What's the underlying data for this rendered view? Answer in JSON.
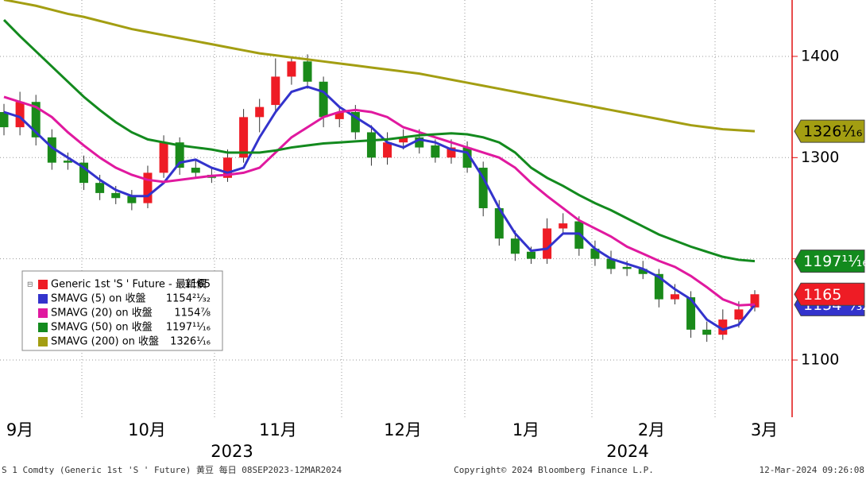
{
  "chart_data": {
    "type": "candlestick",
    "open": [
      1345,
      1330,
      1355,
      1320,
      1297,
      1295,
      1275,
      1265,
      1262,
      1255,
      1285,
      1315,
      1290,
      1283,
      1280,
      1300,
      1340,
      1352,
      1380,
      1395,
      1375,
      1338,
      1345,
      1325,
      1300,
      1315,
      1320,
      1312,
      1300,
      1310,
      1290,
      1250,
      1220,
      1207,
      1200,
      1230,
      1237,
      1210,
      1200,
      1192,
      1190,
      1185,
      1160,
      1162,
      1130,
      1125,
      1140,
      1152
    ],
    "high": [
      1353,
      1365,
      1362,
      1328,
      1305,
      1302,
      1283,
      1272,
      1268,
      1292,
      1322,
      1320,
      1297,
      1290,
      1308,
      1348,
      1358,
      1398,
      1400,
      1402,
      1380,
      1350,
      1352,
      1332,
      1325,
      1328,
      1328,
      1318,
      1318,
      1316,
      1296,
      1258,
      1228,
      1212,
      1240,
      1245,
      1242,
      1218,
      1208,
      1198,
      1198,
      1190,
      1175,
      1168,
      1138,
      1150,
      1158,
      1169
    ],
    "low": [
      1322,
      1322,
      1312,
      1288,
      1288,
      1268,
      1258,
      1254,
      1248,
      1250,
      1280,
      1283,
      1280,
      1275,
      1276,
      1295,
      1325,
      1345,
      1372,
      1368,
      1330,
      1330,
      1318,
      1292,
      1293,
      1308,
      1304,
      1295,
      1294,
      1285,
      1242,
      1213,
      1198,
      1195,
      1195,
      1224,
      1203,
      1193,
      1185,
      1183,
      1180,
      1152,
      1155,
      1122,
      1118,
      1120,
      1132,
      1148
    ],
    "close": [
      1330,
      1355,
      1320,
      1295,
      1295,
      1275,
      1265,
      1260,
      1255,
      1285,
      1315,
      1290,
      1285,
      1280,
      1300,
      1340,
      1350,
      1380,
      1395,
      1375,
      1340,
      1345,
      1325,
      1300,
      1315,
      1320,
      1310,
      1300,
      1310,
      1290,
      1250,
      1220,
      1205,
      1200,
      1230,
      1235,
      1210,
      1200,
      1190,
      1190,
      1185,
      1160,
      1165,
      1130,
      1125,
      1140,
      1150,
      1165
    ],
    "name": "Generic 1st 'S ' Future - 最新價",
    "up_color": "#ee1c25",
    "down_color": "#1a8a1a",
    "series": [
      {
        "name": "SMAVG (5)  on 收盤",
        "color": "#3333cc",
        "value_label": "1154²¹⁄₃₂",
        "values": [
          1345,
          1340,
          1325,
          1310,
          1300,
          1290,
          1278,
          1268,
          1262,
          1262,
          1275,
          1295,
          1298,
          1290,
          1285,
          1290,
          1320,
          1345,
          1365,
          1370,
          1365,
          1350,
          1340,
          1330,
          1315,
          1310,
          1318,
          1315,
          1308,
          1305,
          1280,
          1250,
          1225,
          1208,
          1210,
          1225,
          1225,
          1210,
          1200,
          1195,
          1190,
          1182,
          1170,
          1160,
          1140,
          1130,
          1135,
          1154.65625
        ]
      },
      {
        "name": "SMAVG (20)  on 收盤",
        "color": "#e0199f",
        "value_label": "1154⅞",
        "values": [
          1360,
          1355,
          1350,
          1340,
          1325,
          1312,
          1300,
          1290,
          1283,
          1278,
          1276,
          1278,
          1280,
          1282,
          1283,
          1285,
          1290,
          1305,
          1320,
          1330,
          1340,
          1345,
          1347,
          1345,
          1340,
          1330,
          1325,
          1320,
          1315,
          1310,
          1305,
          1300,
          1290,
          1275,
          1262,
          1250,
          1238,
          1230,
          1222,
          1212,
          1205,
          1198,
          1192,
          1183,
          1172,
          1160,
          1154,
          1154.875
        ]
      },
      {
        "name": "SMAVG (50)  on 收盤",
        "color": "#138a1e",
        "value_label": "1197¹¹⁄₁₆",
        "values": [
          1436,
          1420,
          1405,
          1390,
          1375,
          1360,
          1347,
          1335,
          1325,
          1318,
          1315,
          1312,
          1310,
          1308,
          1305,
          1305,
          1305,
          1307,
          1310,
          1312,
          1314,
          1315,
          1316,
          1317,
          1318,
          1320,
          1322,
          1323,
          1324,
          1323,
          1320,
          1315,
          1305,
          1290,
          1280,
          1272,
          1263,
          1255,
          1248,
          1240,
          1232,
          1224,
          1218,
          1212,
          1207,
          1202,
          1199,
          1197.6875
        ]
      },
      {
        "name": "SMAVG (200)  on 收盤",
        "color": "#a39e12",
        "value_label": "1326¹⁄₁₆",
        "values": [
          1456,
          1453,
          1450,
          1446,
          1442,
          1439,
          1435,
          1431,
          1427,
          1424,
          1421,
          1418,
          1415,
          1412,
          1409,
          1406,
          1403,
          1401,
          1399,
          1397,
          1395,
          1393,
          1391,
          1389,
          1387,
          1385,
          1383,
          1380,
          1377,
          1374,
          1371,
          1368,
          1365,
          1362,
          1359,
          1356,
          1353,
          1350,
          1347,
          1344,
          1341,
          1338,
          1335,
          1332,
          1330,
          1328,
          1327,
          1326.0625
        ]
      }
    ],
    "ylim": [
      1043.5,
      1455.7
    ],
    "yticks": [
      1100,
      1200,
      1300,
      1400
    ],
    "grid": true,
    "months": [
      "9月",
      "10月",
      "11月",
      "12月",
      "1月",
      "2月",
      "3月"
    ],
    "years": [
      "2023",
      "2024"
    ],
    "footer": [
      "S 1 Comdty (Generic 1st 'S ' Future) 黄豆  每日 08SEP2023-12MAR2024",
      "Copyright© 2024 Bloomberg Finance L.P.",
      "12-Mar-2024 09:26:08"
    ]
  }
}
